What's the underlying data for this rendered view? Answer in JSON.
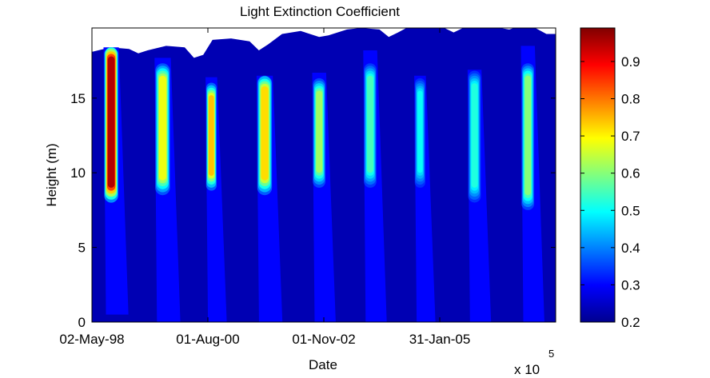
{
  "chart_data": {
    "type": "heatmap",
    "title": "Light Extinction Coefficient",
    "xlabel": "Date",
    "ylabel": "Height (m)",
    "x_exponent_label": "x 10",
    "x_exponent_power": "5",
    "xtick_labels": [
      "02-May-98",
      "01-Aug-00",
      "01-Nov-02",
      "31-Jan-05"
    ],
    "ytick_labels": [
      "0",
      "5",
      "10",
      "15"
    ],
    "yticks": [
      0,
      5,
      10,
      15
    ],
    "ylim": [
      0,
      19.7
    ],
    "colorbar": {
      "colormap": "jet",
      "clim": [
        0.2,
        0.99
      ],
      "ticks": [
        0.2,
        0.3,
        0.4,
        0.5,
        0.6,
        0.7,
        0.8,
        0.9
      ],
      "tick_labels": [
        "0.2",
        "0.3",
        "0.4",
        "0.5",
        "0.6",
        "0.7",
        "0.8",
        "0.9"
      ]
    },
    "background_value": 0.24,
    "surface_height_m": [
      [
        0.0,
        18.1
      ],
      [
        0.04,
        18.4
      ],
      [
        0.08,
        18.3
      ],
      [
        0.1,
        18.0
      ],
      [
        0.12,
        18.2
      ],
      [
        0.16,
        18.5
      ],
      [
        0.2,
        18.4
      ],
      [
        0.22,
        17.7
      ],
      [
        0.24,
        17.9
      ],
      [
        0.26,
        18.9
      ],
      [
        0.3,
        19.0
      ],
      [
        0.34,
        18.8
      ],
      [
        0.36,
        18.2
      ],
      [
        0.38,
        18.6
      ],
      [
        0.41,
        19.3
      ],
      [
        0.45,
        19.5
      ],
      [
        0.49,
        19.1
      ],
      [
        0.51,
        19.2
      ],
      [
        0.55,
        19.6
      ],
      [
        0.58,
        19.7
      ],
      [
        0.62,
        19.6
      ],
      [
        0.64,
        19.1
      ],
      [
        0.66,
        19.4
      ],
      [
        0.69,
        19.9
      ],
      [
        0.73,
        19.8
      ],
      [
        0.76,
        19.7
      ],
      [
        0.78,
        19.4
      ],
      [
        0.8,
        19.7
      ],
      [
        0.83,
        19.7
      ],
      [
        0.86,
        19.8
      ],
      [
        0.9,
        19.6
      ],
      [
        0.92,
        19.8
      ],
      [
        0.95,
        19.8
      ],
      [
        0.98,
        19.3
      ],
      [
        1.0,
        19.3
      ]
    ],
    "seasonal_events": [
      {
        "x_start": 0.025,
        "x_end": 0.058,
        "top_m": 18.4,
        "core_from_m": 9.0,
        "core_to_m": 17.8,
        "peak": 0.95,
        "tail_bottom_m": 0.5
      },
      {
        "x_start": 0.135,
        "x_end": 0.17,
        "top_m": 17.7,
        "core_from_m": 9.5,
        "core_to_m": 16.5,
        "peak": 0.68,
        "tail_bottom_m": 0.0
      },
      {
        "x_start": 0.245,
        "x_end": 0.27,
        "top_m": 16.4,
        "core_from_m": 9.8,
        "core_to_m": 15.2,
        "peak": 0.74,
        "tail_bottom_m": 0.0
      },
      {
        "x_start": 0.355,
        "x_end": 0.39,
        "top_m": 16.5,
        "core_from_m": 9.5,
        "core_to_m": 15.8,
        "peak": 0.72,
        "tail_bottom_m": 0.0
      },
      {
        "x_start": 0.475,
        "x_end": 0.505,
        "top_m": 16.7,
        "core_from_m": 10.0,
        "core_to_m": 15.5,
        "peak": 0.62,
        "tail_bottom_m": 0.0
      },
      {
        "x_start": 0.585,
        "x_end": 0.615,
        "top_m": 18.2,
        "core_from_m": 10.0,
        "core_to_m": 16.5,
        "peak": 0.55,
        "tail_bottom_m": 0.0
      },
      {
        "x_start": 0.695,
        "x_end": 0.72,
        "top_m": 16.5,
        "core_from_m": 10.0,
        "core_to_m": 15.5,
        "peak": 0.5,
        "tail_bottom_m": 0.0
      },
      {
        "x_start": 0.81,
        "x_end": 0.84,
        "top_m": 16.9,
        "core_from_m": 9.0,
        "core_to_m": 16.0,
        "peak": 0.52,
        "tail_bottom_m": 0.0
      },
      {
        "x_start": 0.925,
        "x_end": 0.955,
        "top_m": 18.5,
        "core_from_m": 8.5,
        "core_to_m": 16.5,
        "peak": 0.6,
        "tail_bottom_m": 0.0
      }
    ]
  }
}
